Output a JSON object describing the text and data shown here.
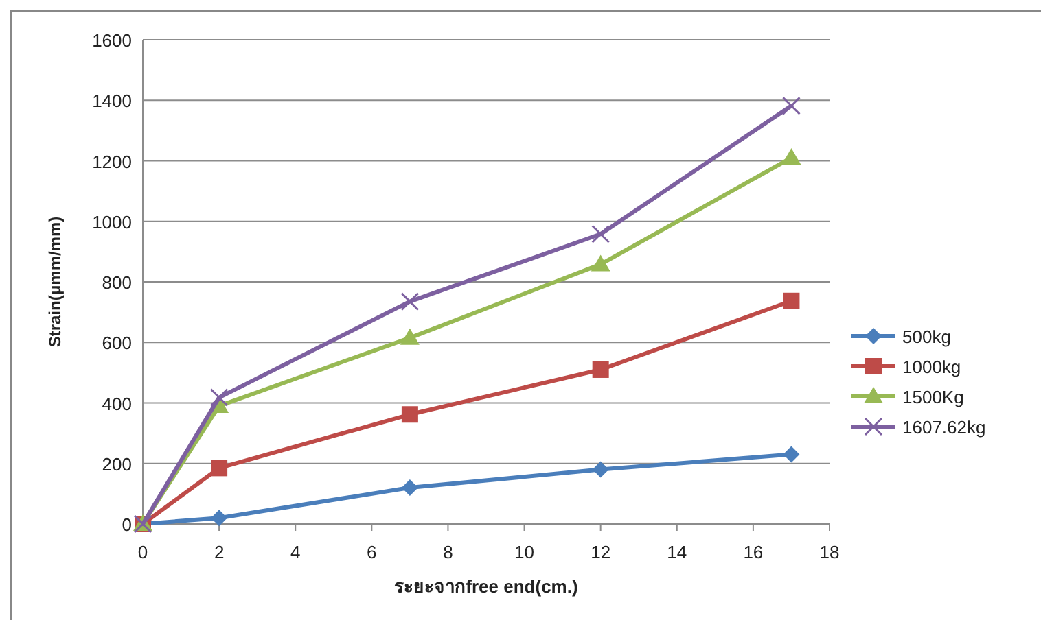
{
  "chart_data": {
    "type": "line",
    "xlabel": "ระยะจากfree end(cm.)",
    "ylabel": "Strain(μmm/mm)",
    "x": [
      0,
      2,
      7,
      12,
      17
    ],
    "series": [
      {
        "name": "500kg",
        "color": "#4a7ebb",
        "marker": "diamond",
        "values": [
          0,
          20,
          120,
          180,
          230
        ]
      },
      {
        "name": "1000kg",
        "color": "#be4b48",
        "marker": "square",
        "values": [
          0,
          185,
          362,
          510,
          737
        ]
      },
      {
        "name": "1500Kg",
        "color": "#98b954",
        "marker": "triangle",
        "values": [
          0,
          390,
          615,
          858,
          1210
        ]
      },
      {
        "name": "1607.62kg",
        "color": "#7d60a0",
        "marker": "cross",
        "values": [
          0,
          418,
          735,
          958,
          1382
        ]
      }
    ],
    "xlim": [
      0,
      18
    ],
    "xticks": [
      0,
      2,
      4,
      6,
      8,
      10,
      12,
      14,
      16,
      18
    ],
    "ylim": [
      0,
      1600
    ],
    "yticks": [
      0,
      200,
      400,
      600,
      800,
      1000,
      1200,
      1400,
      1600
    ],
    "grid": "y",
    "legend": "right",
    "line_style": "solid"
  }
}
